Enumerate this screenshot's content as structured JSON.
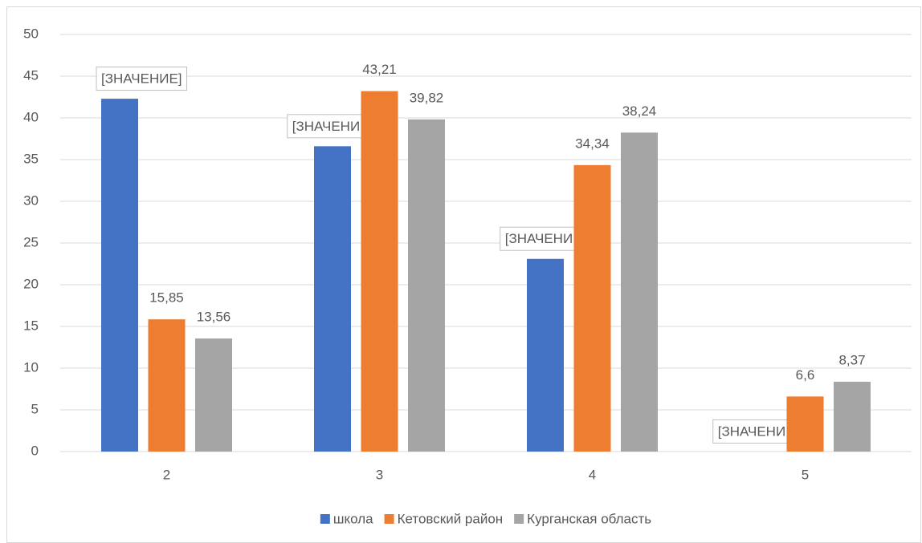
{
  "chart_data": {
    "type": "bar",
    "categories": [
      "2",
      "3",
      "4",
      "5"
    ],
    "series": [
      {
        "name": "школа",
        "color": "#4472c4",
        "values": [
          42.3,
          36.6,
          23.1,
          0
        ],
        "value_labels": [
          "[ЗНАЧЕНИЕ]",
          "[ЗНАЧЕНИЕ]",
          "[ЗНАЧЕНИЕ]",
          "[ЗНАЧЕНИЕ]"
        ]
      },
      {
        "name": "Кетовский район",
        "color": "#ed7d31",
        "values": [
          15.85,
          43.21,
          34.34,
          6.6
        ],
        "value_labels": [
          "15,85",
          "43,21",
          "34,34",
          "6,6"
        ]
      },
      {
        "name": "Курганская область",
        "color": "#a5a5a5",
        "values": [
          13.56,
          39.82,
          38.24,
          8.37
        ],
        "value_labels": [
          "13,56",
          "39,82",
          "38,24",
          "8,37"
        ]
      }
    ],
    "ylim": [
      0,
      50
    ],
    "yticks": [
      0,
      5,
      10,
      15,
      20,
      25,
      30,
      35,
      40,
      45,
      50
    ],
    "grid": true,
    "legend": "bottom"
  }
}
